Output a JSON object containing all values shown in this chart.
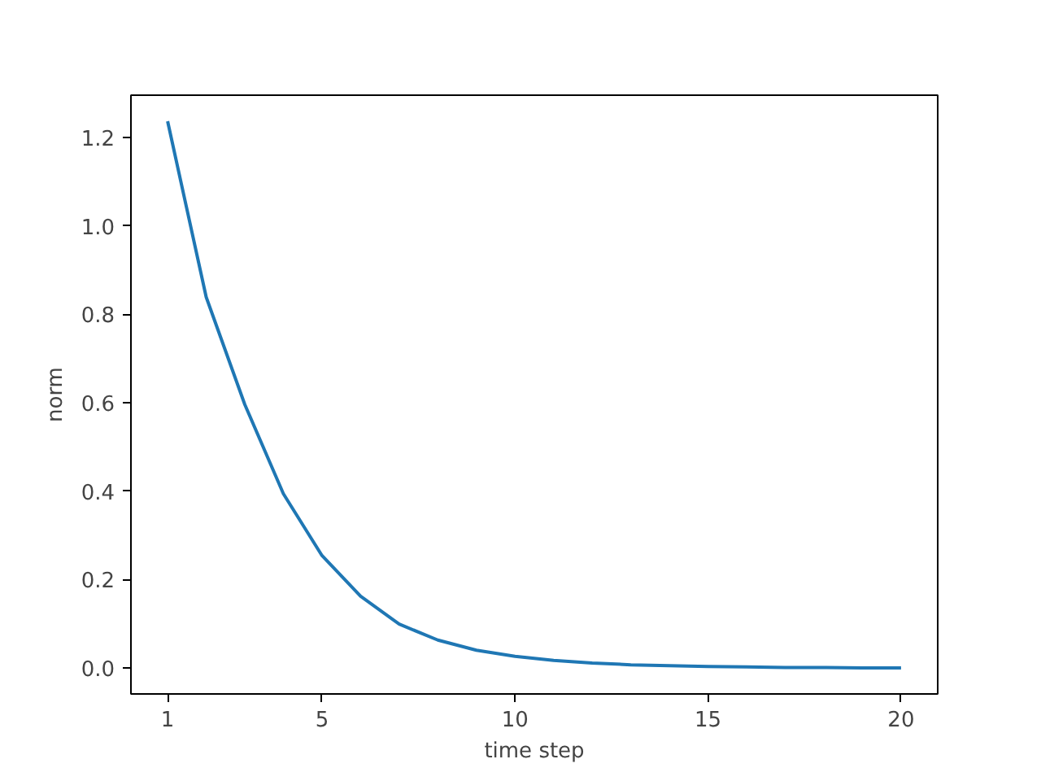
{
  "chart_data": {
    "type": "line",
    "xlabel": "time step",
    "ylabel": "norm",
    "x": [
      1,
      2,
      3,
      4,
      5,
      6,
      7,
      8,
      9,
      10,
      11,
      12,
      13,
      14,
      15,
      16,
      17,
      18,
      19,
      20
    ],
    "series": [
      {
        "color": "#1f77b4",
        "values": [
          1.237,
          0.839,
          0.596,
          0.394,
          0.254,
          0.162,
          0.099,
          0.063,
          0.04,
          0.026,
          0.017,
          0.011,
          0.007,
          0.005,
          0.003,
          0.002,
          0.001,
          0.001,
          0.0,
          0.0
        ]
      }
    ],
    "xlim": [
      0.05,
      20.95
    ],
    "ylim": [
      -0.059,
      1.296
    ],
    "xticks": [
      1,
      5,
      10,
      15,
      20
    ],
    "yticks": [
      {
        "value": 0,
        "label": "0.0"
      },
      {
        "value": 0.2,
        "label": "0.2"
      },
      {
        "value": 0.4,
        "label": "0.4"
      },
      {
        "value": 0.6,
        "label": "0.6"
      },
      {
        "value": 0.8,
        "label": "0.8"
      },
      {
        "value": 1.0,
        "label": "1.0"
      },
      {
        "value": 1.2,
        "label": "1.2"
      }
    ],
    "grid": false,
    "marker": "none",
    "line_style": "solid"
  }
}
